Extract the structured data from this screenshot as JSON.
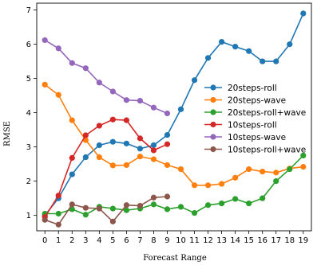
{
  "chart_data": {
    "type": "line",
    "title": "",
    "xlabel": "Forecast Range",
    "ylabel": "RMSE",
    "xlim": [
      -0.6,
      19.6
    ],
    "ylim": [
      0.55,
      7.2
    ],
    "xticks": [
      0,
      1,
      2,
      3,
      4,
      5,
      6,
      7,
      8,
      9,
      10,
      11,
      12,
      13,
      14,
      15,
      16,
      17,
      18,
      19
    ],
    "yticks": [
      1,
      2,
      3,
      4,
      5,
      6,
      7
    ],
    "grid": false,
    "legend_position": "center-right",
    "series": [
      {
        "name": "20steps-roll",
        "color": "#1f77b4",
        "x": [
          0,
          1,
          2,
          3,
          4,
          5,
          6,
          7,
          8,
          9,
          10,
          11,
          12,
          13,
          14,
          15,
          16,
          17,
          18,
          19
        ],
        "y": [
          1.0,
          1.5,
          2.2,
          2.7,
          3.05,
          3.15,
          3.1,
          2.95,
          3.05,
          3.35,
          4.1,
          4.95,
          5.6,
          6.07,
          5.93,
          5.8,
          5.5,
          5.5,
          6.0,
          6.9
        ]
      },
      {
        "name": "20steps-wave",
        "color": "#ff7f0e",
        "x": [
          0,
          1,
          2,
          3,
          4,
          5,
          6,
          7,
          8,
          9,
          10,
          11,
          12,
          13,
          14,
          15,
          16,
          17,
          18,
          19
        ],
        "y": [
          4.82,
          4.52,
          3.78,
          3.2,
          2.7,
          2.46,
          2.47,
          2.72,
          2.64,
          2.47,
          2.35,
          1.88,
          1.88,
          1.92,
          2.1,
          2.35,
          2.28,
          2.25,
          2.37,
          2.42
        ]
      },
      {
        "name": "20steps-roll+wave",
        "color": "#2ca02c",
        "x": [
          0,
          1,
          2,
          3,
          4,
          5,
          6,
          7,
          8,
          9,
          10,
          11,
          12,
          13,
          14,
          15,
          16,
          17,
          18,
          19
        ],
        "y": [
          1.05,
          1.05,
          1.18,
          1.02,
          1.25,
          1.2,
          1.15,
          1.2,
          1.32,
          1.18,
          1.25,
          1.07,
          1.3,
          1.35,
          1.48,
          1.35,
          1.5,
          2.0,
          2.35,
          2.75
        ]
      },
      {
        "name": "10steps-roll",
        "color": "#d62728",
        "x": [
          0,
          1,
          2,
          3,
          4,
          5,
          6,
          7,
          8,
          9
        ],
        "y": [
          0.95,
          1.58,
          2.68,
          3.34,
          3.62,
          3.8,
          3.78,
          3.25,
          2.9,
          3.08
        ]
      },
      {
        "name": "10steps-wave",
        "color": "#9467bd",
        "x": [
          0,
          1,
          2,
          3,
          4,
          5,
          6,
          7,
          8,
          9
        ],
        "y": [
          6.12,
          5.88,
          5.45,
          5.3,
          4.88,
          4.62,
          4.37,
          4.35,
          4.15,
          3.98
        ]
      },
      {
        "name": "10steps-roll+wave",
        "color": "#8c564b",
        "x": [
          0,
          1,
          2,
          3,
          4,
          5,
          6,
          7,
          8,
          9
        ],
        "y": [
          0.87,
          0.73,
          1.32,
          1.22,
          1.2,
          0.82,
          1.3,
          1.28,
          1.52,
          1.55
        ]
      }
    ]
  }
}
